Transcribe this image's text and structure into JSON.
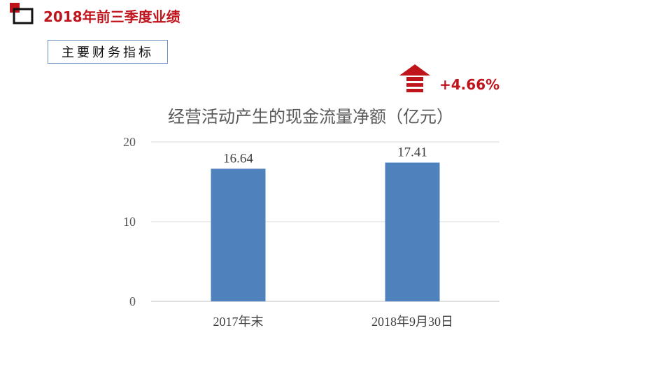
{
  "header": {
    "title": "2018年前三季度业绩",
    "section_label": "主要财务指标"
  },
  "growth": {
    "value": "+4.66%",
    "icon": "up-arrow-icon",
    "color": "#c0141c"
  },
  "colors": {
    "accent": "#c0141c",
    "bar": "#4f81bd",
    "box_border": "#6a8fc0"
  },
  "chart_data": {
    "type": "bar",
    "title": "经营活动产生的现金流量净额（亿元）",
    "categories": [
      "2017年末",
      "2018年9月30日"
    ],
    "values": [
      16.64,
      17.41
    ],
    "data_labels": [
      "16.64",
      "17.41"
    ],
    "yticks": [
      0,
      10,
      20
    ],
    "ylim": [
      0,
      20
    ],
    "xlabel": "",
    "ylabel": "",
    "grid": true,
    "legend": "none"
  }
}
